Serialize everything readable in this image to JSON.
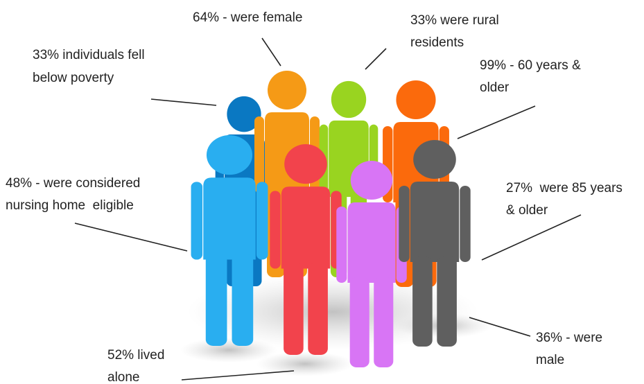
{
  "labels": [
    {
      "lines": [
        "64% - were female"
      ]
    },
    {
      "lines": [
        "33% were rural",
        "residents"
      ]
    },
    {
      "lines": [
        "33% individuals fell",
        "below poverty"
      ]
    },
    {
      "lines": [
        "99% - 60 years &",
        "older"
      ]
    },
    {
      "lines": [
        "48% - were considered",
        "nursing home  eligible"
      ]
    },
    {
      "lines": [
        "27%  were 85 years",
        "& older"
      ]
    },
    {
      "lines": [
        "36% - were",
        "male"
      ]
    },
    {
      "lines": [
        "52% lived",
        "alone"
      ]
    }
  ]
}
